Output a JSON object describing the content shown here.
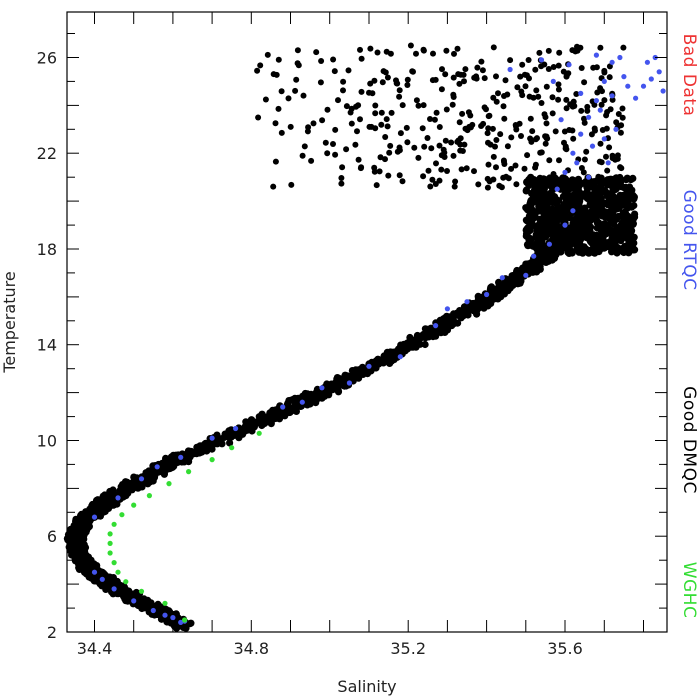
{
  "chart_data": {
    "type": "scatter",
    "xlabel": "Salinity",
    "ylabel": "Temperature",
    "xlim": [
      34.33,
      35.86
    ],
    "ylim": [
      2,
      27.9
    ],
    "xticks": [
      34.4,
      34.8,
      35.2,
      35.6
    ],
    "yticks": [
      2,
      6,
      10,
      14,
      18,
      22,
      26
    ],
    "grid": false,
    "legend_position": "right",
    "legend": [
      {
        "key": "wghc",
        "label": "WGHC",
        "color": "#33dd33"
      },
      {
        "key": "dmqc",
        "label": "Good DMQC",
        "color": "#000000"
      },
      {
        "key": "rtqc",
        "label": "Good RTQC",
        "color": "#4455ee"
      },
      {
        "key": "bad",
        "label": "Bad Data",
        "color": "#ee3333"
      }
    ],
    "series": [
      {
        "key": "dmqc",
        "color": "#000000",
        "style": "band",
        "spine": [
          [
            34.63,
            2.3
          ],
          [
            34.55,
            3.0
          ],
          [
            34.47,
            3.7
          ],
          [
            34.4,
            4.4
          ],
          [
            34.36,
            5.2
          ],
          [
            34.35,
            6.0
          ],
          [
            34.37,
            6.6
          ],
          [
            34.42,
            7.3
          ],
          [
            34.5,
            8.2
          ],
          [
            34.6,
            9.1
          ],
          [
            34.72,
            10.0
          ],
          [
            34.85,
            11.0
          ],
          [
            34.98,
            12.0
          ],
          [
            35.12,
            13.2
          ],
          [
            35.25,
            14.4
          ],
          [
            35.37,
            15.6
          ],
          [
            35.47,
            16.7
          ],
          [
            35.56,
            17.8
          ],
          [
            35.62,
            18.7
          ],
          [
            35.66,
            19.5
          ]
        ],
        "spread": 0.02,
        "count": 1800,
        "cloud": {
          "x": [
            35.5,
            35.78
          ],
          "y": [
            17.8,
            21.0
          ],
          "count": 700
        },
        "scatter_top": {
          "x": [
            33.8,
            35.75
          ],
          "y": [
            20.5,
            26.5
          ],
          "count": 400,
          "min_x": 34.8
        }
      },
      {
        "key": "rtqc",
        "color": "#4455ee",
        "points": [
          [
            34.62,
            2.4
          ],
          [
            34.55,
            2.9
          ],
          [
            34.5,
            3.3
          ],
          [
            34.45,
            3.8
          ],
          [
            34.42,
            4.2
          ],
          [
            34.4,
            4.5
          ],
          [
            34.6,
            2.6
          ],
          [
            34.58,
            2.7
          ],
          [
            34.63,
            2.45
          ],
          [
            34.4,
            6.8
          ],
          [
            34.46,
            7.6
          ],
          [
            34.52,
            8.4
          ],
          [
            34.62,
            9.3
          ],
          [
            34.76,
            10.5
          ],
          [
            34.93,
            11.6
          ],
          [
            35.05,
            12.4
          ],
          [
            35.18,
            13.5
          ],
          [
            35.27,
            14.8
          ],
          [
            35.35,
            15.8
          ],
          [
            35.44,
            16.8
          ],
          [
            35.52,
            17.7
          ],
          [
            35.56,
            18.2
          ],
          [
            35.6,
            19.0
          ],
          [
            35.62,
            19.6
          ],
          [
            35.58,
            20.5
          ],
          [
            35.6,
            21.2
          ],
          [
            35.62,
            22.0
          ],
          [
            35.64,
            22.8
          ],
          [
            35.66,
            23.5
          ],
          [
            35.68,
            24.2
          ],
          [
            35.7,
            25.0
          ],
          [
            35.72,
            25.8
          ],
          [
            35.74,
            26.0
          ],
          [
            35.76,
            24.8
          ],
          [
            35.78,
            24.3
          ],
          [
            35.8,
            24.8
          ],
          [
            35.82,
            25.1
          ],
          [
            35.84,
            25.4
          ],
          [
            35.85,
            24.6
          ],
          [
            35.81,
            25.8
          ],
          [
            35.83,
            26.0
          ],
          [
            35.69,
            23.8
          ],
          [
            35.66,
            21.0
          ],
          [
            35.57,
            25.0
          ],
          [
            35.61,
            25.7
          ],
          [
            35.64,
            24.5
          ],
          [
            35.67,
            22.3
          ],
          [
            35.71,
            21.6
          ],
          [
            35.59,
            23.4
          ],
          [
            35.54,
            25.9
          ],
          [
            35.73,
            23.0
          ],
          [
            35.75,
            25.2
          ],
          [
            35.7,
            22.6
          ],
          [
            35.63,
            21.6
          ],
          [
            35.46,
            25.5
          ],
          [
            35.68,
            26.1
          ],
          [
            35.72,
            24.4
          ],
          [
            35.5,
            16.9
          ],
          [
            35.4,
            16.1
          ],
          [
            35.3,
            15.5
          ],
          [
            35.1,
            13.1
          ],
          [
            34.98,
            12.2
          ],
          [
            34.88,
            11.4
          ],
          [
            34.7,
            10.1
          ],
          [
            34.56,
            8.9
          ]
        ]
      },
      {
        "key": "wghc",
        "color": "#33dd33",
        "points": [
          [
            34.63,
            2.5
          ],
          [
            34.58,
            3.2
          ],
          [
            34.52,
            3.7
          ],
          [
            34.48,
            4.1
          ],
          [
            34.46,
            4.5
          ],
          [
            34.45,
            4.9
          ],
          [
            34.44,
            5.3
          ],
          [
            34.44,
            5.7
          ],
          [
            34.44,
            6.1
          ],
          [
            34.45,
            6.5
          ],
          [
            34.47,
            6.9
          ],
          [
            34.5,
            7.3
          ],
          [
            34.54,
            7.7
          ],
          [
            34.59,
            8.2
          ],
          [
            34.64,
            8.7
          ],
          [
            34.7,
            9.2
          ],
          [
            34.75,
            9.7
          ],
          [
            34.82,
            10.3
          ]
        ]
      }
    ]
  }
}
